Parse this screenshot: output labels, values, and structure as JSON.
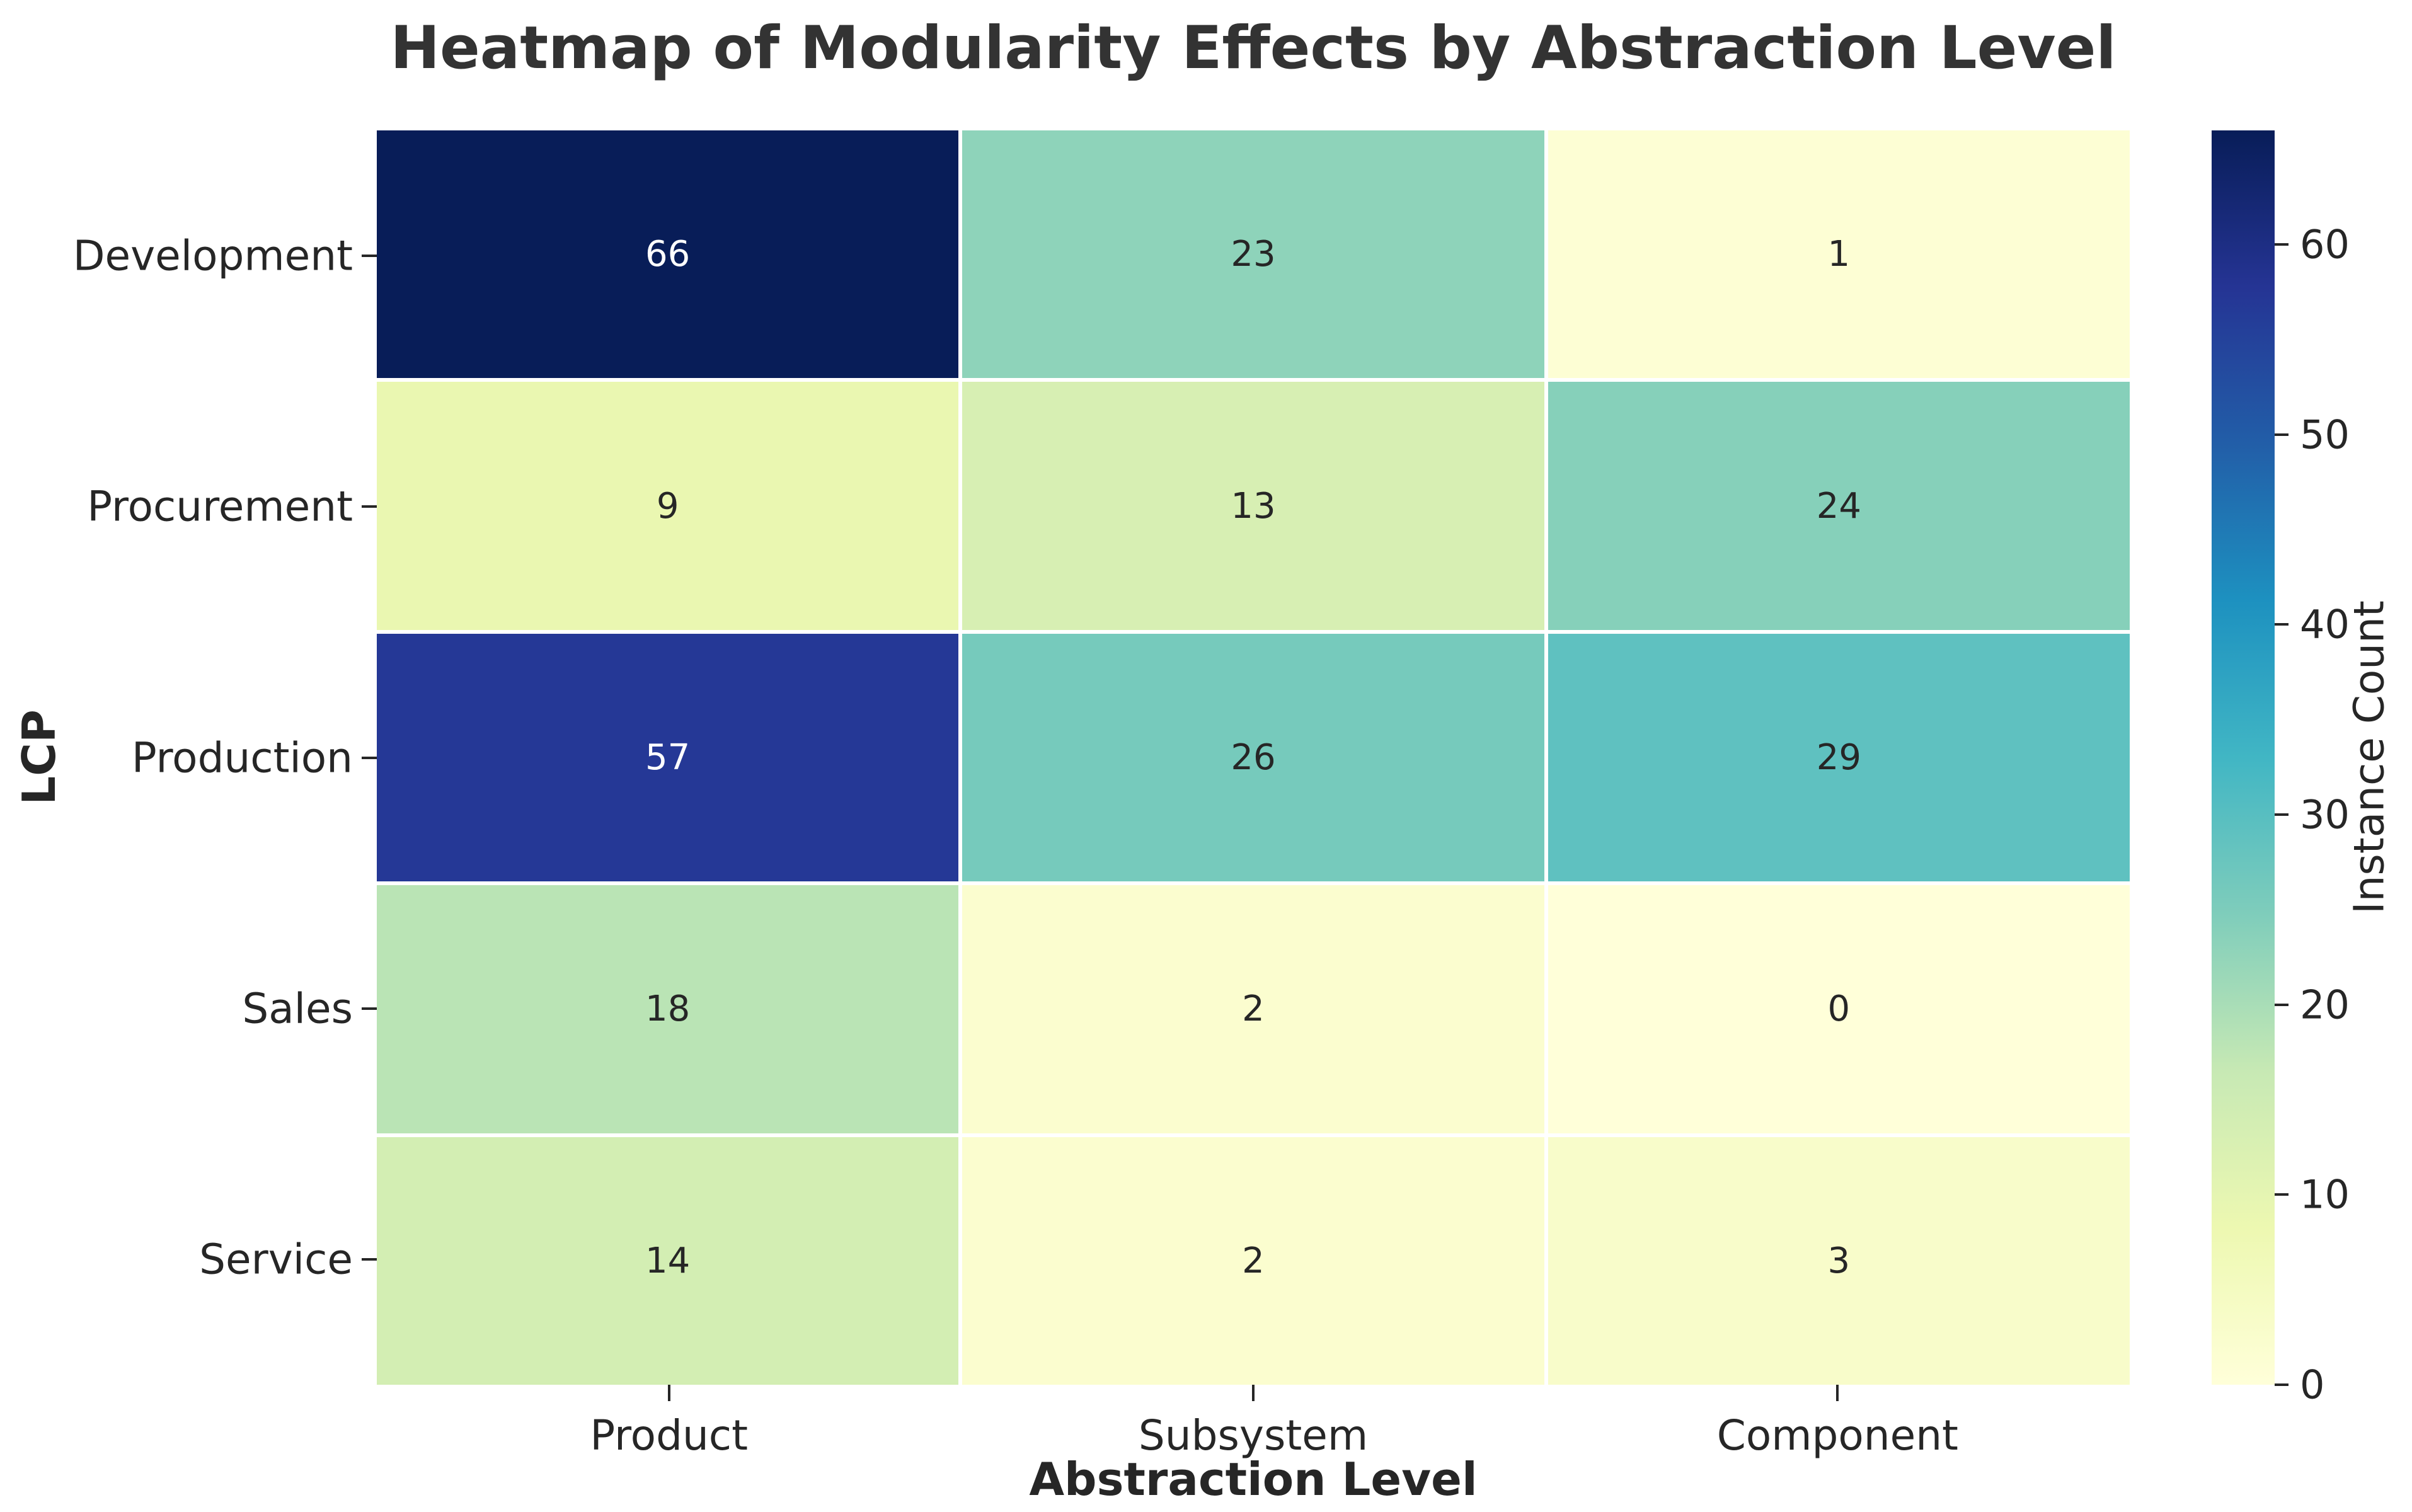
{
  "chart_data": {
    "type": "heatmap",
    "title": "Heatmap of Modularity Effects by Abstraction Level",
    "xlabel": "Abstraction Level",
    "ylabel": "LCP",
    "colorbar_label": "Instance Count",
    "x_categories": [
      "Product",
      "Subsystem",
      "Component"
    ],
    "y_categories": [
      "Development",
      "Procurement",
      "Production",
      "Sales",
      "Service"
    ],
    "values": [
      [
        66,
        23,
        1
      ],
      [
        9,
        13,
        24
      ],
      [
        57,
        26,
        29
      ],
      [
        18,
        2,
        0
      ],
      [
        14,
        2,
        3
      ]
    ],
    "vmin": 0,
    "vmax": 66,
    "colorbar_ticks": [
      0,
      10,
      20,
      30,
      40,
      50,
      60
    ],
    "legend_position": "right",
    "grid": false,
    "colormap": "YlGnBu",
    "colormap_stops": [
      [
        0.0,
        "#ffffd9"
      ],
      [
        0.125,
        "#edf8b1"
      ],
      [
        0.25,
        "#c7e9b4"
      ],
      [
        0.375,
        "#7fcdbb"
      ],
      [
        0.5,
        "#41b6c4"
      ],
      [
        0.625,
        "#1d91c0"
      ],
      [
        0.75,
        "#225ea8"
      ],
      [
        0.875,
        "#253494"
      ],
      [
        1.0,
        "#081d58"
      ]
    ],
    "colors": {
      "background": "#ffffff",
      "text": "#262626",
      "title_text": "#333333",
      "annotation_dark": "#262626",
      "annotation_light": "#ffffff",
      "gridline": "#ffffff"
    }
  }
}
